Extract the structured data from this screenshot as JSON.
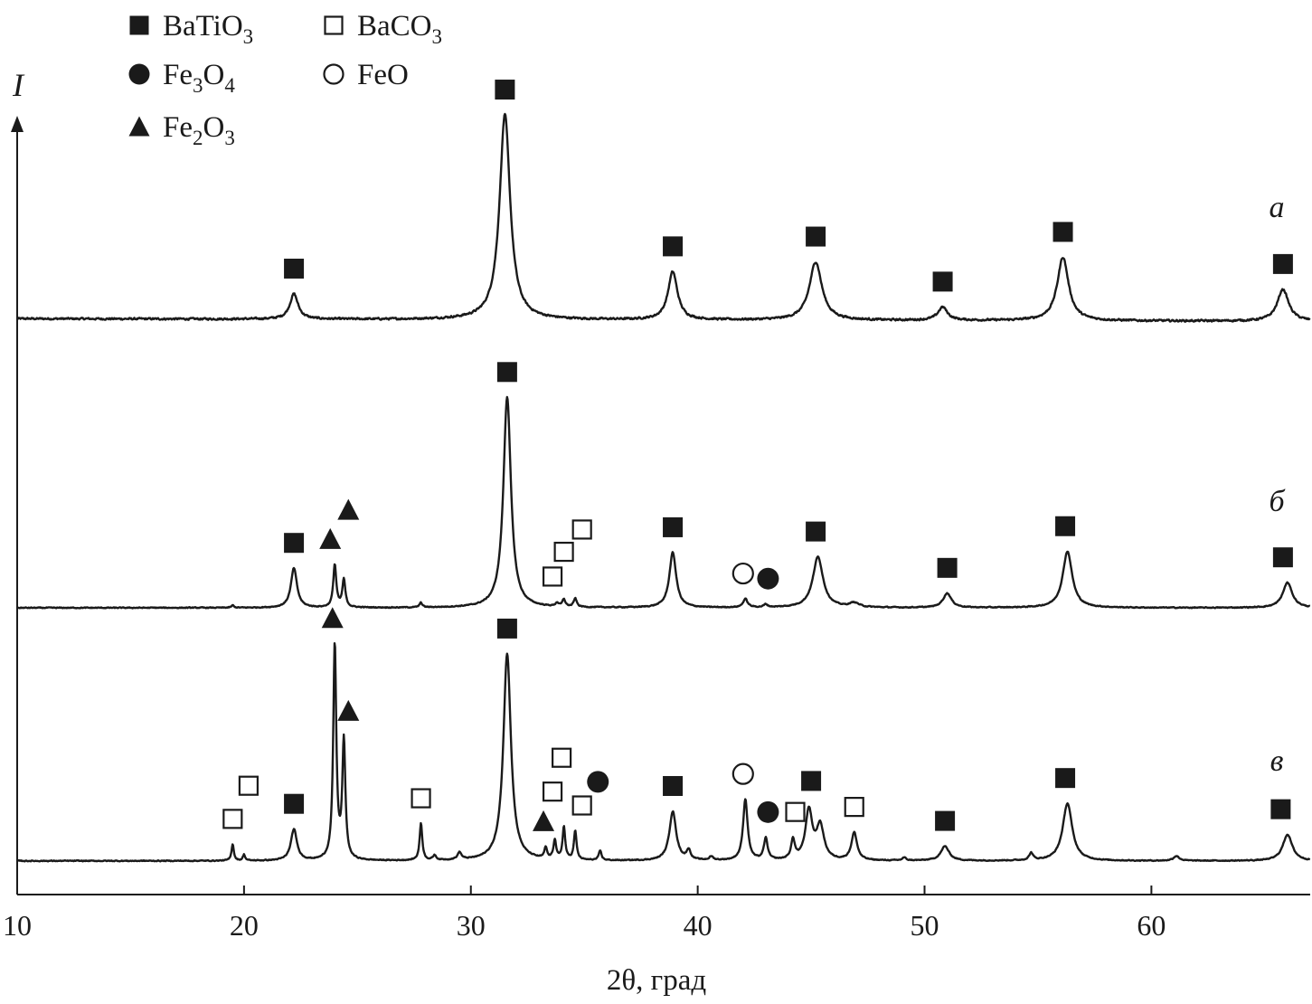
{
  "chart_data": {
    "type": "line",
    "xlabel": "2θ, град",
    "ylabel": "I",
    "xlim": [
      10,
      67
    ],
    "xticks": [
      10,
      20,
      30,
      40,
      50,
      60
    ],
    "y_axis_ticks": false,
    "legend": {
      "placement": "top-left",
      "entries": [
        {
          "marker": "filled-square",
          "label_main": "BaTiO",
          "label_sub": "3",
          "label_tail": ""
        },
        {
          "marker": "open-square",
          "label_main": "BaCO",
          "label_sub": "3",
          "label_tail": ""
        },
        {
          "marker": "filled-circle",
          "label_main": "Fe",
          "label_sub": "3",
          "label_tail": "O",
          "label_sub2": "4"
        },
        {
          "marker": "open-circle",
          "label_main": "FeO",
          "label_sub": "",
          "label_tail": ""
        },
        {
          "marker": "filled-triangle",
          "label_main": "Fe",
          "label_sub": "2",
          "label_tail": "O",
          "label_sub2": "3"
        }
      ]
    },
    "series": [
      {
        "name": "а",
        "baseline_left": 0.93,
        "baseline_right": 0.82,
        "peaks": [
          {
            "x": 22.2,
            "height": 1.05,
            "width": 0.22,
            "phase": "BaTiO3"
          },
          {
            "x": 31.5,
            "height": 8.55,
            "width": 0.28,
            "phase": "BaTiO3"
          },
          {
            "x": 38.9,
            "height": 2.0,
            "width": 0.25,
            "phase": "BaTiO3"
          },
          {
            "x": 45.2,
            "height": 2.43,
            "width": 0.33,
            "phase": "BaTiO3"
          },
          {
            "x": 50.8,
            "height": 0.55,
            "width": 0.25,
            "phase": "BaTiO3"
          },
          {
            "x": 56.1,
            "height": 2.65,
            "width": 0.3,
            "phase": "BaTiO3"
          },
          {
            "x": 65.8,
            "height": 1.33,
            "width": 0.3,
            "phase": "BaTiO3"
          }
        ]
      },
      {
        "name": "б",
        "baseline_left": 0.15,
        "baseline_right": 0.15,
        "peaks": [
          {
            "x": 19.5,
            "height": 0.1,
            "width": 0.06
          },
          {
            "x": 22.2,
            "height": 1.65,
            "width": 0.16,
            "phase": "BaTiO3"
          },
          {
            "x": 24.0,
            "height": 1.78,
            "width": 0.08,
            "phase": "Fe2O3"
          },
          {
            "x": 24.4,
            "height": 1.15,
            "width": 0.08,
            "phase": "Fe2O3"
          },
          {
            "x": 27.8,
            "height": 0.2,
            "width": 0.07
          },
          {
            "x": 31.6,
            "height": 8.8,
            "width": 0.2,
            "phase": "BaTiO3"
          },
          {
            "x": 33.8,
            "height": 0.15,
            "width": 0.08,
            "phase": "BaCO3"
          },
          {
            "x": 34.1,
            "height": 0.3,
            "width": 0.08,
            "phase": "BaCO3"
          },
          {
            "x": 34.6,
            "height": 0.35,
            "width": 0.08,
            "phase": "BaCO3"
          },
          {
            "x": 38.9,
            "height": 2.3,
            "width": 0.18,
            "phase": "BaTiO3"
          },
          {
            "x": 42.1,
            "height": 0.35,
            "width": 0.12,
            "phase": "FeO"
          },
          {
            "x": 43.0,
            "height": 0.12,
            "width": 0.1,
            "phase": "Fe3O4"
          },
          {
            "x": 45.3,
            "height": 2.12,
            "width": 0.27,
            "phase": "BaTiO3"
          },
          {
            "x": 46.9,
            "height": 0.18,
            "width": 0.25
          },
          {
            "x": 51.0,
            "height": 0.6,
            "width": 0.22,
            "phase": "BaTiO3"
          },
          {
            "x": 56.3,
            "height": 2.35,
            "width": 0.25,
            "phase": "BaTiO3"
          },
          {
            "x": 66.0,
            "height": 1.05,
            "width": 0.25,
            "phase": "BaTiO3"
          }
        ]
      },
      {
        "name": "в",
        "baseline_left": 0.12,
        "baseline_right": 0.12,
        "peaks": [
          {
            "x": 19.5,
            "height": 0.7,
            "width": 0.06,
            "phase": "BaCO3"
          },
          {
            "x": 20.0,
            "height": 0.25,
            "width": 0.06,
            "phase": "BaCO3"
          },
          {
            "x": 22.2,
            "height": 1.3,
            "width": 0.16,
            "phase": "BaTiO3"
          },
          {
            "x": 24.0,
            "height": 9.0,
            "width": 0.08,
            "phase": "Fe2O3"
          },
          {
            "x": 24.4,
            "height": 4.9,
            "width": 0.08,
            "phase": "Fe2O3"
          },
          {
            "x": 27.8,
            "height": 1.55,
            "width": 0.07,
            "phase": "BaCO3"
          },
          {
            "x": 28.4,
            "height": 0.2,
            "width": 0.08
          },
          {
            "x": 29.5,
            "height": 0.3,
            "width": 0.1
          },
          {
            "x": 31.6,
            "height": 8.65,
            "width": 0.2,
            "phase": "BaTiO3"
          },
          {
            "x": 33.3,
            "height": 0.45,
            "width": 0.07,
            "phase": "Fe2O3"
          },
          {
            "x": 33.7,
            "height": 0.8,
            "width": 0.07,
            "phase": "BaCO3"
          },
          {
            "x": 34.1,
            "height": 1.35,
            "width": 0.07,
            "phase": "BaCO3"
          },
          {
            "x": 34.6,
            "height": 1.2,
            "width": 0.07,
            "phase": "BaCO3"
          },
          {
            "x": 35.7,
            "height": 0.4,
            "width": 0.07,
            "phase": "Fe3O4"
          },
          {
            "x": 38.9,
            "height": 2.05,
            "width": 0.18,
            "phase": "BaTiO3"
          },
          {
            "x": 39.6,
            "height": 0.4,
            "width": 0.1
          },
          {
            "x": 40.6,
            "height": 0.15,
            "width": 0.1
          },
          {
            "x": 42.1,
            "height": 2.55,
            "width": 0.12,
            "phase": "FeO"
          },
          {
            "x": 43.0,
            "height": 0.9,
            "width": 0.1,
            "phase": "Fe3O4"
          },
          {
            "x": 44.2,
            "height": 0.8,
            "width": 0.1,
            "phase": "BaCO3"
          },
          {
            "x": 44.9,
            "height": 2.05,
            "width": 0.18,
            "phase": "BaTiO3"
          },
          {
            "x": 45.4,
            "height": 1.4,
            "width": 0.2,
            "phase": "BaTiO3"
          },
          {
            "x": 46.9,
            "height": 1.15,
            "width": 0.15,
            "phase": "BaCO3"
          },
          {
            "x": 49.1,
            "height": 0.12,
            "width": 0.1
          },
          {
            "x": 50.9,
            "height": 0.6,
            "width": 0.22,
            "phase": "BaTiO3"
          },
          {
            "x": 54.7,
            "height": 0.3,
            "width": 0.1
          },
          {
            "x": 56.3,
            "height": 2.4,
            "width": 0.25,
            "phase": "BaTiO3"
          },
          {
            "x": 61.1,
            "height": 0.2,
            "width": 0.15
          },
          {
            "x": 66.0,
            "height": 1.1,
            "width": 0.25,
            "phase": "BaTiO3"
          }
        ]
      }
    ],
    "annotations": [
      {
        "series": 0,
        "x": 22.2,
        "phase": "BaTiO3"
      },
      {
        "series": 0,
        "x": 31.5,
        "phase": "BaTiO3"
      },
      {
        "series": 0,
        "x": 38.9,
        "phase": "BaTiO3"
      },
      {
        "series": 0,
        "x": 45.2,
        "phase": "BaTiO3"
      },
      {
        "series": 0,
        "x": 50.8,
        "phase": "BaTiO3"
      },
      {
        "series": 0,
        "x": 56.1,
        "phase": "BaTiO3"
      },
      {
        "series": 0,
        "x": 65.8,
        "phase": "BaTiO3"
      },
      {
        "series": 1,
        "x": 22.2,
        "phase": "BaTiO3"
      },
      {
        "series": 1,
        "x": 23.8,
        "phase": "Fe2O3"
      },
      {
        "series": 1,
        "x": 24.6,
        "phase": "Fe2O3"
      },
      {
        "series": 1,
        "x": 31.6,
        "phase": "BaTiO3"
      },
      {
        "series": 1,
        "x": 33.6,
        "phase": "BaCO3"
      },
      {
        "series": 1,
        "x": 34.1,
        "phase": "BaCO3"
      },
      {
        "series": 1,
        "x": 34.9,
        "phase": "BaCO3"
      },
      {
        "series": 1,
        "x": 38.9,
        "phase": "BaTiO3"
      },
      {
        "series": 1,
        "x": 42.0,
        "phase": "FeO"
      },
      {
        "series": 1,
        "x": 43.1,
        "phase": "Fe3O4"
      },
      {
        "series": 1,
        "x": 45.2,
        "phase": "BaTiO3"
      },
      {
        "series": 1,
        "x": 51.0,
        "phase": "BaTiO3"
      },
      {
        "series": 1,
        "x": 56.2,
        "phase": "BaTiO3"
      },
      {
        "series": 1,
        "x": 65.8,
        "phase": "BaTiO3"
      },
      {
        "series": 2,
        "x": 19.5,
        "phase": "BaCO3"
      },
      {
        "series": 2,
        "x": 20.2,
        "phase": "BaCO3"
      },
      {
        "series": 2,
        "x": 22.2,
        "phase": "BaTiO3"
      },
      {
        "series": 2,
        "x": 23.9,
        "phase": "Fe2O3"
      },
      {
        "series": 2,
        "x": 24.6,
        "phase": "Fe2O3"
      },
      {
        "series": 2,
        "x": 27.8,
        "phase": "BaCO3"
      },
      {
        "series": 2,
        "x": 31.6,
        "phase": "BaTiO3"
      },
      {
        "series": 2,
        "x": 33.2,
        "phase": "Fe2O3"
      },
      {
        "series": 2,
        "x": 33.6,
        "phase": "BaCO3"
      },
      {
        "series": 2,
        "x": 34.0,
        "phase": "BaCO3"
      },
      {
        "series": 2,
        "x": 34.9,
        "phase": "BaCO3"
      },
      {
        "series": 2,
        "x": 35.6,
        "phase": "Fe3O4"
      },
      {
        "series": 2,
        "x": 38.9,
        "phase": "BaTiO3"
      },
      {
        "series": 2,
        "x": 42.0,
        "phase": "FeO"
      },
      {
        "series": 2,
        "x": 43.1,
        "phase": "Fe3O4"
      },
      {
        "series": 2,
        "x": 44.3,
        "phase": "BaCO3"
      },
      {
        "series": 2,
        "x": 45.0,
        "phase": "BaTiO3"
      },
      {
        "series": 2,
        "x": 46.9,
        "phase": "BaCO3"
      },
      {
        "series": 2,
        "x": 50.9,
        "phase": "BaTiO3"
      },
      {
        "series": 2,
        "x": 56.2,
        "phase": "BaTiO3"
      },
      {
        "series": 2,
        "x": 65.7,
        "phase": "BaTiO3"
      }
    ]
  }
}
